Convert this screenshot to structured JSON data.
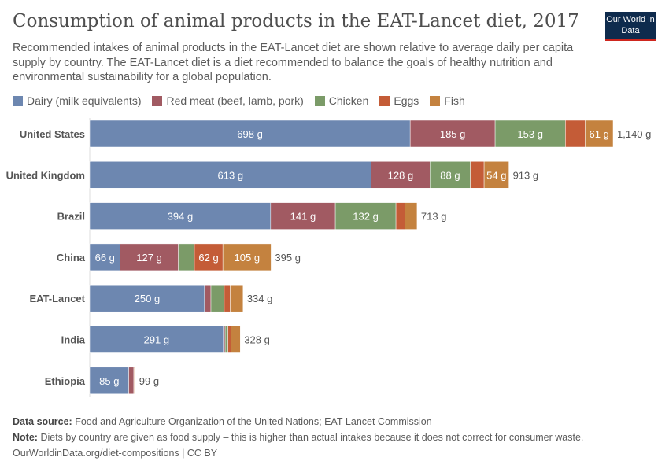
{
  "title": "Consumption of animal products in the EAT-Lancet diet, 2017",
  "subtitle": "Recommended intakes of animal products in the EAT-Lancet diet are shown relative to average daily per capita supply by country. The EAT-Lancet diet is a diet recommended to balance the goals of healthy nutrition and environmental sustainability for a global population.",
  "logo": "Our World in Data",
  "colors": {
    "dairy": "#6d87b0",
    "red_meat": "#a15a62",
    "chicken": "#7b9b68",
    "eggs": "#c45c37",
    "fish": "#c4823f",
    "logo_bg": "#0e2b4d",
    "logo_accent": "#ce261e"
  },
  "chart_data": {
    "type": "bar",
    "orientation": "horizontal",
    "stacked": true,
    "unit": "g",
    "legend_placement": "top",
    "grid": false,
    "categories": [
      "United States",
      "United Kingdom",
      "Brazil",
      "China",
      "EAT-Lancet",
      "India",
      "Ethiopia"
    ],
    "series": [
      {
        "name": "Dairy (milk equivalents)",
        "values": [
          698,
          613,
          394,
          66,
          250,
          291,
          85
        ]
      },
      {
        "name": "Red meat (beef, lamb, pork)",
        "values": [
          185,
          128,
          141,
          127,
          14,
          4,
          11
        ]
      },
      {
        "name": "Chicken",
        "values": [
          153,
          88,
          132,
          35,
          29,
          6,
          0
        ]
      },
      {
        "name": "Eggs",
        "values": [
          43,
          30,
          20,
          62,
          13,
          7,
          1
        ]
      },
      {
        "name": "Fish",
        "values": [
          61,
          54,
          26,
          105,
          28,
          20,
          2
        ]
      }
    ],
    "totals": [
      "1,140 g",
      "913 g",
      "713 g",
      "395 g",
      "334 g",
      "328 g",
      "99 g"
    ],
    "shown_labels": [
      [
        "698 g",
        "185 g",
        "153 g",
        "",
        "61 g"
      ],
      [
        "613 g",
        "128 g",
        "88 g",
        "",
        "54 g"
      ],
      [
        "394 g",
        "141 g",
        "132 g",
        "",
        ""
      ],
      [
        "66 g",
        "127 g",
        "",
        "62 g",
        "105 g"
      ],
      [
        "250 g",
        "",
        "",
        "",
        ""
      ],
      [
        "291 g",
        "",
        "",
        "",
        ""
      ],
      [
        "85 g",
        "",
        "",
        "",
        ""
      ]
    ]
  },
  "footer": {
    "source_label": "Data source:",
    "source": "Food and Agriculture Organization of the United Nations; EAT-Lancet Commission",
    "note_label": "Note:",
    "note": "Diets by country are given as food supply – this is higher than actual intakes because it does not correct for consumer waste.",
    "url": "OurWorldinData.org/diet-compositions | CC BY"
  }
}
